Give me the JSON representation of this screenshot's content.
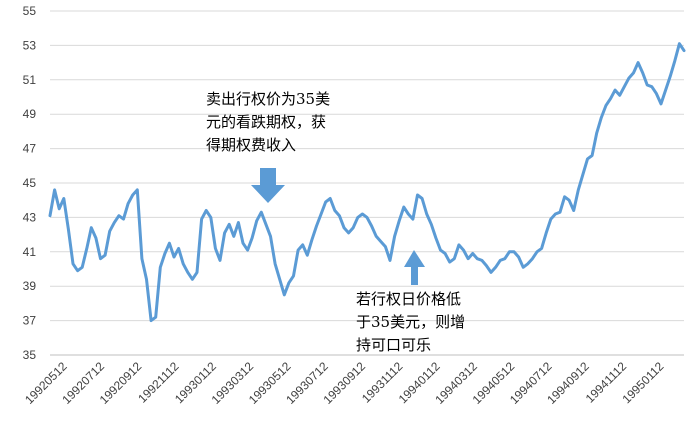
{
  "chart_data": {
    "type": "line",
    "title": "",
    "xlabel": "",
    "ylabel": "",
    "ylim": [
      35,
      55
    ],
    "y_ticks": [
      35,
      37,
      39,
      41,
      43,
      45,
      47,
      49,
      51,
      53,
      55
    ],
    "x_tick_labels": [
      "19920512",
      "19920712",
      "19920912",
      "19921112",
      "19930112",
      "19930312",
      "19930512",
      "19930712",
      "19930912",
      "19931112",
      "19940112",
      "19940312",
      "19940512",
      "19940712",
      "19940912",
      "19941112",
      "19950112"
    ],
    "grid": "horizontal",
    "legend": "none",
    "line_color": "#5b9bd5",
    "series": [
      {
        "values": [
          43.1,
          44.6,
          43.5,
          44.1,
          42.3,
          40.3,
          39.9,
          40.1,
          41.2,
          42.4,
          41.8,
          40.6,
          40.8,
          42.2,
          42.7,
          43.1,
          42.9,
          43.8,
          44.3,
          44.6,
          40.6,
          39.4,
          37.0,
          37.2,
          40.1,
          40.9,
          41.5,
          40.7,
          41.2,
          40.3,
          39.8,
          39.4,
          39.8,
          42.9,
          43.4,
          43.0,
          41.2,
          40.5,
          42.1,
          42.6,
          41.9,
          42.7,
          41.5,
          41.1,
          41.8,
          42.8,
          43.3,
          42.6,
          41.9,
          40.3,
          39.4,
          38.5,
          39.2,
          39.6,
          41.1,
          41.4,
          40.8,
          41.7,
          42.5,
          43.2,
          43.9,
          44.1,
          43.4,
          43.1,
          42.4,
          42.1,
          42.4,
          43.0,
          43.2,
          43.0,
          42.5,
          41.9,
          41.6,
          41.3,
          40.5,
          41.9,
          42.8,
          43.6,
          43.2,
          42.9,
          44.3,
          44.1,
          43.2,
          42.6,
          41.8,
          41.1,
          40.9,
          40.4,
          40.6,
          41.4,
          41.1,
          40.6,
          40.9,
          40.6,
          40.5,
          40.2,
          39.8,
          40.1,
          40.5,
          40.6,
          41.0,
          41.0,
          40.7,
          40.1,
          40.3,
          40.6,
          41.0,
          41.2,
          42.1,
          42.9,
          43.2,
          43.3,
          44.2,
          44.0,
          43.4,
          44.6,
          45.5,
          46.4,
          46.6,
          47.9,
          48.8,
          49.5,
          49.9,
          50.4,
          50.1,
          50.6,
          51.1,
          51.4,
          52.0,
          51.4,
          50.7,
          50.6,
          50.2,
          49.6,
          50.4,
          51.2,
          52.1,
          53.1,
          52.7
        ]
      }
    ]
  },
  "annotations": {
    "put_sold": [
      "卖出行权价为35美",
      "元的看跌期权，获",
      "得期权费收入"
    ],
    "if_price_low": [
      "若行权日价格低",
      "于35美元，则增",
      "持可口可乐"
    ]
  }
}
